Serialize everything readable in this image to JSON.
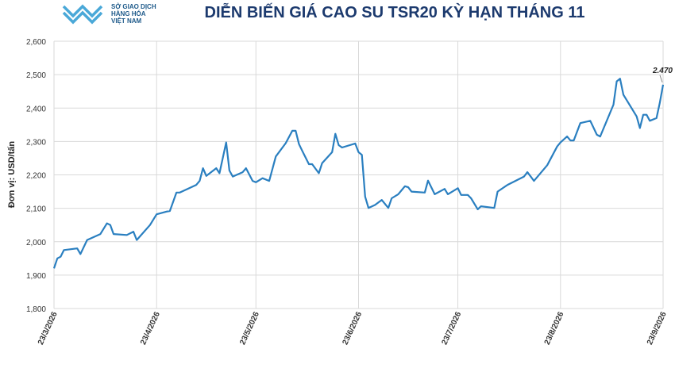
{
  "chart_data": {
    "type": "line",
    "logo_text": [
      "SỞ GIAO DỊCH",
      "HÀNG HÓA",
      "VIỆT NAM"
    ],
    "title": "DIỄN BIẾN GIÁ CAO SU TSR20 KỲ HẠN THÁNG 11",
    "y_label": "Đơn vị: USD/tấn",
    "grid": true,
    "ylim": [
      1800,
      2600
    ],
    "yticks": [
      {
        "value": 1800,
        "label": "1,800"
      },
      {
        "value": 1900,
        "label": "1,900"
      },
      {
        "value": 2000,
        "label": "2,000"
      },
      {
        "value": 2100,
        "label": "2,100"
      },
      {
        "value": 2200,
        "label": "2,200"
      },
      {
        "value": 2300,
        "label": "2,300"
      },
      {
        "value": 2400,
        "label": "2,400"
      },
      {
        "value": 2500,
        "label": "2,500"
      },
      {
        "value": 2600,
        "label": "2,600"
      }
    ],
    "xlim": [
      "2026-03-23",
      "2026-09-23"
    ],
    "xticks": [
      {
        "value": "2026-03-23",
        "label": "23/3/2026"
      },
      {
        "value": "2026-04-23",
        "label": "23/4/2026"
      },
      {
        "value": "2026-05-23",
        "label": "23/5/2026"
      },
      {
        "value": "2026-06-23",
        "label": "23/6/2026"
      },
      {
        "value": "2026-07-23",
        "label": "23/7/2026"
      },
      {
        "value": "2026-08-23",
        "label": "23/8/2026"
      },
      {
        "value": "2026-09-23",
        "label": "23/9/2026"
      }
    ],
    "x": [
      "2026-03-23",
      "2026-03-24",
      "2026-03-25",
      "2026-03-26",
      "2026-03-30",
      "2026-03-31",
      "2026-04-02",
      "2026-04-06",
      "2026-04-08",
      "2026-04-09",
      "2026-04-10",
      "2026-04-14",
      "2026-04-16",
      "2026-04-17",
      "2026-04-21",
      "2026-04-23",
      "2026-04-26",
      "2026-04-27",
      "2026-04-29",
      "2026-04-30",
      "2026-05-05",
      "2026-05-06",
      "2026-05-07",
      "2026-05-08",
      "2026-05-11",
      "2026-05-12",
      "2026-05-14",
      "2026-05-15",
      "2026-05-16",
      "2026-05-19",
      "2026-05-20",
      "2026-05-22",
      "2026-05-23",
      "2026-05-25",
      "2026-05-27",
      "2026-05-29",
      "2026-06-01",
      "2026-06-03",
      "2026-06-04",
      "2026-06-05",
      "2026-06-06",
      "2026-06-08",
      "2026-06-09",
      "2026-06-11",
      "2026-06-12",
      "2026-06-15",
      "2026-06-16",
      "2026-06-17",
      "2026-06-18",
      "2026-06-22",
      "2026-06-23",
      "2026-06-24",
      "2026-06-25",
      "2026-06-26",
      "2026-06-28",
      "2026-06-30",
      "2026-07-02",
      "2026-07-03",
      "2026-07-05",
      "2026-07-07",
      "2026-07-08",
      "2026-07-09",
      "2026-07-13",
      "2026-07-14",
      "2026-07-16",
      "2026-07-19",
      "2026-07-20",
      "2026-07-23",
      "2026-07-24",
      "2026-07-26",
      "2026-07-27",
      "2026-07-29",
      "2026-07-30",
      "2026-08-03",
      "2026-08-04",
      "2026-08-07",
      "2026-08-12",
      "2026-08-13",
      "2026-08-14",
      "2026-08-15",
      "2026-08-19",
      "2026-08-22",
      "2026-08-23",
      "2026-08-25",
      "2026-08-26",
      "2026-08-27",
      "2026-08-29",
      "2026-09-01",
      "2026-09-03",
      "2026-09-04",
      "2026-09-08",
      "2026-09-09",
      "2026-09-10",
      "2026-09-11",
      "2026-09-15",
      "2026-09-16",
      "2026-09-17",
      "2026-09-18",
      "2026-09-19",
      "2026-09-21",
      "2026-09-22",
      "2026-09-23"
    ],
    "series": [
      {
        "name": "TSR20",
        "color": "#2a7fc0",
        "values": [
          1920,
          1950,
          1955,
          1975,
          1980,
          1963,
          2005,
          2023,
          2055,
          2050,
          2023,
          2020,
          2030,
          2005,
          2050,
          2082,
          2090,
          2092,
          2147,
          2147,
          2170,
          2182,
          2220,
          2197,
          2220,
          2205,
          2297,
          2213,
          2195,
          2208,
          2220,
          2182,
          2178,
          2190,
          2182,
          2255,
          2295,
          2332,
          2332,
          2292,
          2272,
          2232,
          2232,
          2205,
          2235,
          2268,
          2323,
          2289,
          2282,
          2294,
          2268,
          2260,
          2135,
          2101,
          2110,
          2125,
          2101,
          2130,
          2142,
          2166,
          2163,
          2150,
          2147,
          2183,
          2142,
          2158,
          2142,
          2160,
          2140,
          2140,
          2130,
          2097,
          2106,
          2101,
          2150,
          2170,
          2195,
          2208,
          2195,
          2182,
          2229,
          2285,
          2297,
          2315,
          2303,
          2303,
          2355,
          2362,
          2320,
          2315,
          2410,
          2480,
          2488,
          2440,
          2375,
          2340,
          2380,
          2380,
          2362,
          2370,
          2415,
          2470
        ]
      }
    ],
    "annotation": {
      "text": "2.470",
      "x": "2026-09-23",
      "y": 2470
    }
  }
}
